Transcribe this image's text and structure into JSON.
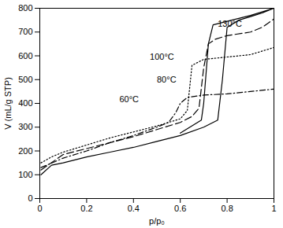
{
  "chart_data": {
    "type": "line",
    "xlabel": "p/p₀",
    "ylabel": "V (mL/g STP)",
    "xlim": [
      0,
      1
    ],
    "xticks": [
      0,
      0.2,
      0.4,
      0.6,
      0.8,
      1
    ],
    "ylim": [
      0,
      800
    ],
    "yticks": [
      0,
      100,
      200,
      300,
      400,
      500,
      600,
      700,
      800
    ],
    "series": [
      {
        "name": "130°C",
        "color": "#000000",
        "line_style": "solid",
        "x": [
          0.005,
          0.05,
          0.1,
          0.2,
          0.3,
          0.4,
          0.5,
          0.6,
          0.7,
          0.76,
          0.78,
          0.8,
          0.85,
          0.9,
          0.95,
          1.0,
          0.9,
          0.8,
          0.74,
          0.72,
          0.7,
          0.69,
          0.6
        ],
        "values": [
          100,
          140,
          150,
          175,
          195,
          215,
          240,
          265,
          300,
          330,
          500,
          720,
          750,
          765,
          780,
          800,
          770,
          745,
          730,
          650,
          400,
          330,
          275
        ]
      },
      {
        "name": "100°C",
        "color": "#000000",
        "line_style": "longdash",
        "x": [
          0.005,
          0.1,
          0.2,
          0.3,
          0.4,
          0.5,
          0.6,
          0.65,
          0.68,
          0.7,
          0.72,
          0.75,
          0.8,
          0.9,
          0.95,
          1.0
        ],
        "values": [
          120,
          185,
          210,
          235,
          260,
          290,
          320,
          345,
          380,
          550,
          650,
          670,
          685,
          700,
          720,
          755
        ]
      },
      {
        "name": "80°C",
        "color": "#000000",
        "line_style": "dotted",
        "x": [
          0.005,
          0.05,
          0.1,
          0.2,
          0.3,
          0.4,
          0.5,
          0.6,
          0.63,
          0.65,
          0.7,
          0.8,
          0.9,
          1.0
        ],
        "values": [
          150,
          175,
          195,
          225,
          255,
          280,
          305,
          335,
          370,
          560,
          585,
          595,
          605,
          635
        ]
      },
      {
        "name": "60°C",
        "color": "#000000",
        "line_style": "dashdot",
        "x": [
          0.005,
          0.1,
          0.2,
          0.3,
          0.4,
          0.5,
          0.55,
          0.58,
          0.6,
          0.63,
          0.7,
          0.8,
          0.9,
          1.0
        ],
        "values": [
          130,
          170,
          200,
          235,
          265,
          300,
          320,
          360,
          400,
          425,
          435,
          440,
          450,
          460
        ]
      }
    ],
    "annotations": [
      {
        "text": "130°C",
        "x": 0.76,
        "y": 735
      },
      {
        "text": "100°C",
        "x": 0.47,
        "y": 595
      },
      {
        "text": "80°C",
        "x": 0.5,
        "y": 500
      },
      {
        "text": "60°C",
        "x": 0.34,
        "y": 415
      }
    ]
  }
}
